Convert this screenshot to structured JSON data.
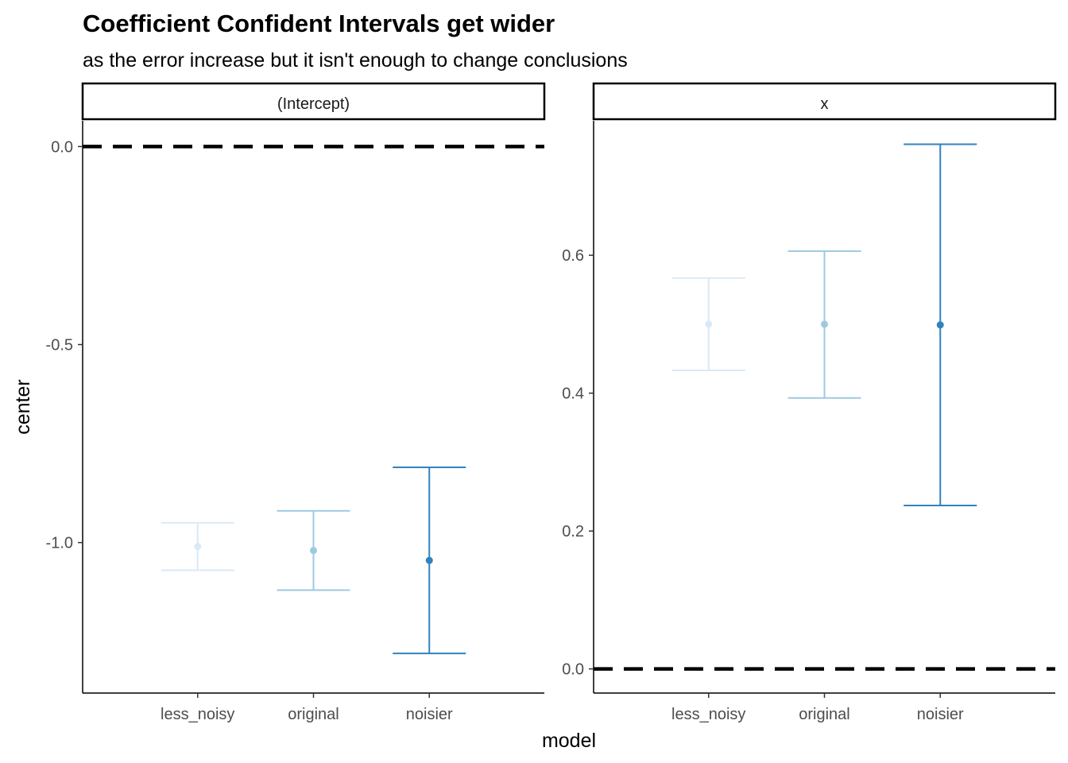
{
  "chart_data": {
    "type": "errorbar",
    "title": "Coefficient Confident Intervals get wider",
    "subtitle": "as the error increase but it isn't enough to change conclusions",
    "xlabel": "model",
    "ylabel": "center",
    "categories": [
      "less_noisy",
      "original",
      "noisier"
    ],
    "colors": {
      "less_noisy": "#dbe9f6",
      "original": "#9ecae1",
      "noisier": "#3182bd",
      "reference_line": "#000000"
    },
    "reference_line": {
      "y": 0,
      "style": "dashed"
    },
    "facets": [
      {
        "label": "(Intercept)",
        "ylim": [
          -1.38,
          0.065
        ],
        "yticks": [
          0.0,
          -0.5,
          -1.0
        ],
        "ytick_labels": [
          "0.0",
          "-0.5",
          "-1.0"
        ],
        "points": [
          {
            "model": "less_noisy",
            "center": -1.01,
            "lower": -1.07,
            "upper": -0.95
          },
          {
            "model": "original",
            "center": -1.02,
            "lower": -1.12,
            "upper": -0.92
          },
          {
            "model": "noisier",
            "center": -1.045,
            "lower": -1.28,
            "upper": -0.81
          }
        ]
      },
      {
        "label": "x",
        "ylim": [
          -0.035,
          0.795
        ],
        "yticks": [
          0.6,
          0.4,
          0.2,
          0.0
        ],
        "ytick_labels": [
          "0.6",
          "0.4",
          "0.2",
          "0.0"
        ],
        "points": [
          {
            "model": "less_noisy",
            "center": 0.5,
            "lower": 0.433,
            "upper": 0.567
          },
          {
            "model": "original",
            "center": 0.5,
            "lower": 0.393,
            "upper": 0.606
          },
          {
            "model": "noisier",
            "center": 0.499,
            "lower": 0.237,
            "upper": 0.761
          }
        ]
      }
    ]
  }
}
